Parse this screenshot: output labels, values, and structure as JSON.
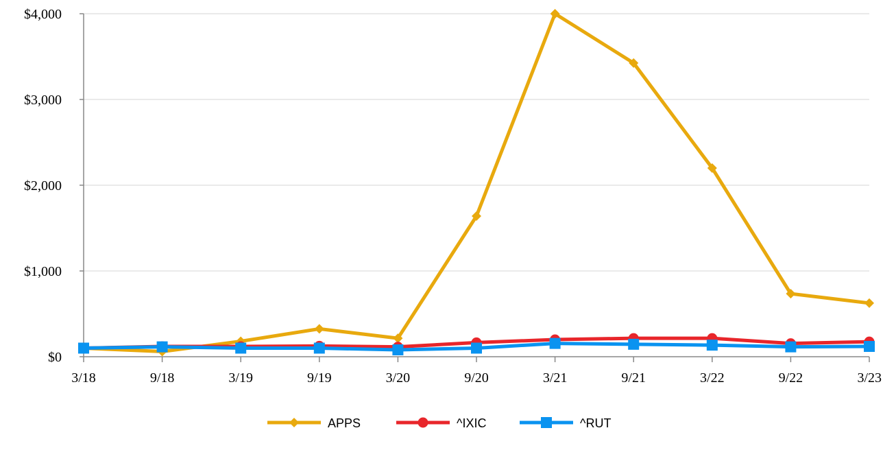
{
  "chart_data": {
    "type": "line",
    "categories": [
      "3/18",
      "9/18",
      "3/19",
      "9/19",
      "3/20",
      "9/20",
      "3/21",
      "9/21",
      "3/22",
      "9/22",
      "3/23"
    ],
    "ylim": [
      0,
      4000
    ],
    "yticks": [
      0,
      1000,
      2000,
      3000,
      4000
    ],
    "ytick_labels": [
      "$0",
      "$1,000",
      "$2,000",
      "$3,000",
      "$4,000"
    ],
    "grid": true,
    "legend_position": "bottom",
    "series": [
      {
        "name": "APPS",
        "color": "#E8A90E",
        "marker": "diamond",
        "values": [
          100,
          60,
          180,
          325,
          215,
          1640,
          4000,
          3425,
          2200,
          735,
          625
        ]
      },
      {
        "name": "^IXIC",
        "color": "#E8262B",
        "marker": "circle",
        "values": [
          100,
          120,
          120,
          125,
          115,
          165,
          200,
          215,
          215,
          155,
          175
        ]
      },
      {
        "name": "^RUT",
        "color": "#0A93F0",
        "marker": "square",
        "values": [
          100,
          115,
          100,
          100,
          80,
          100,
          155,
          145,
          135,
          115,
          120
        ]
      }
    ]
  }
}
